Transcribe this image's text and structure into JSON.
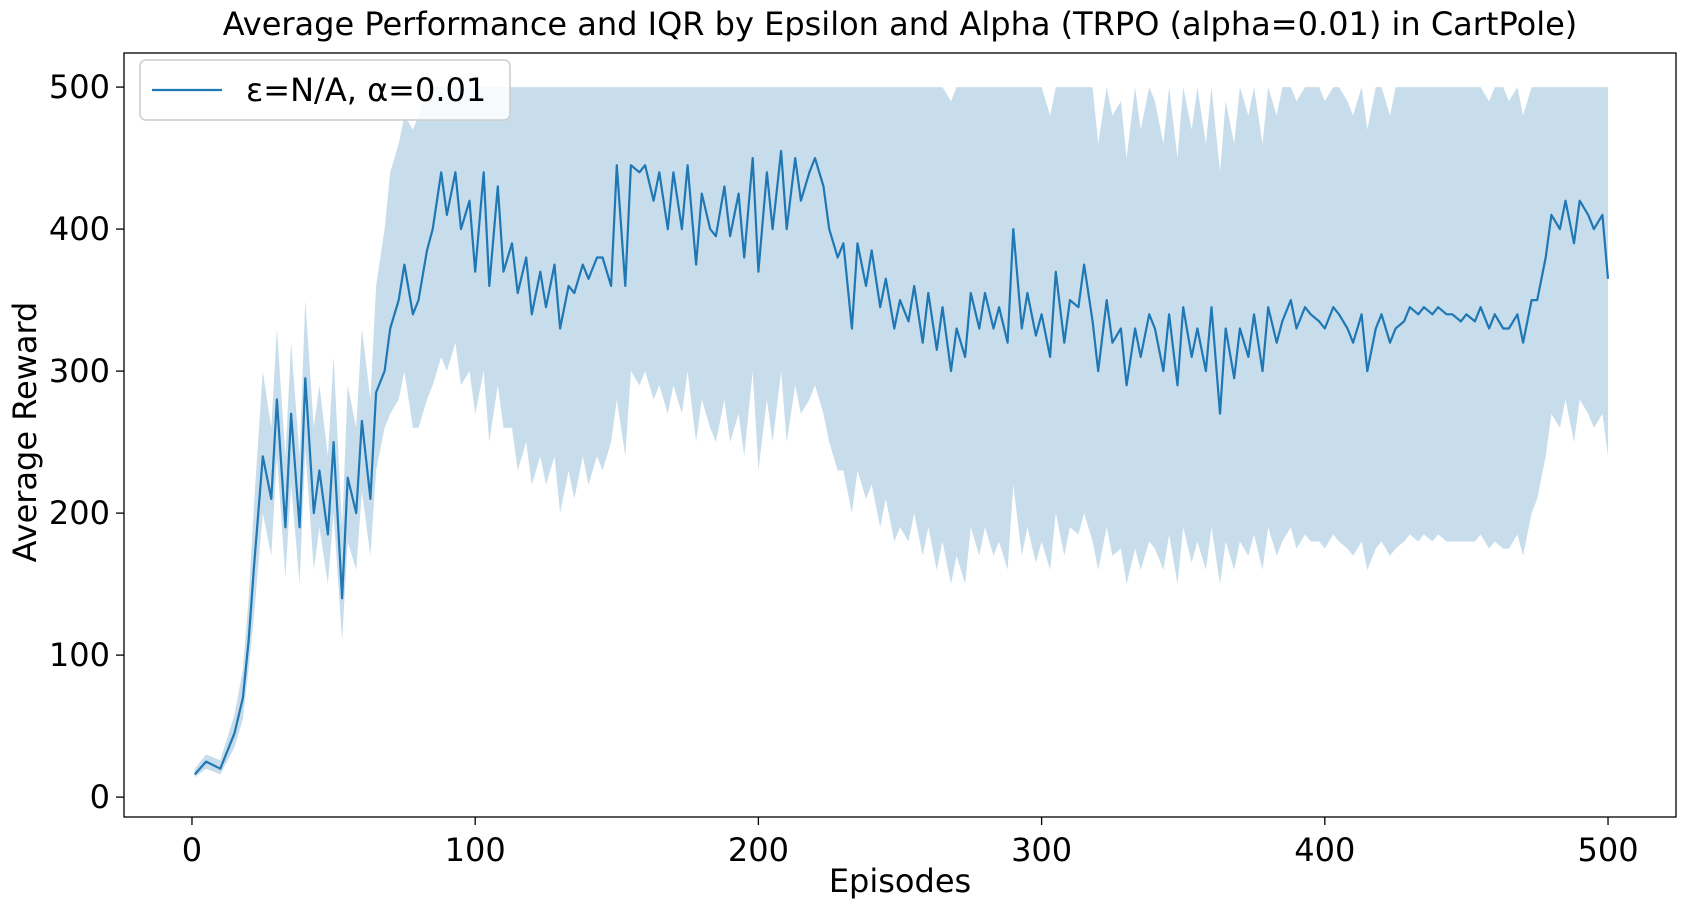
{
  "chart_data": {
    "type": "line",
    "title": "Average Performance and IQR by Epsilon and Alpha (TRPO (alpha=0.01) in CartPole)",
    "xlabel": "Episodes",
    "ylabel": "Average Reward",
    "xlim": [
      -24,
      524
    ],
    "ylim": [
      -14,
      524
    ],
    "xticks": [
      0,
      100,
      200,
      300,
      400,
      500
    ],
    "yticks": [
      0,
      100,
      200,
      300,
      400,
      500
    ],
    "grid": false,
    "legend_position": "top-left",
    "colors": {
      "line": "#1f77b4",
      "band": "#1f77b4",
      "band_opacity": 0.25
    },
    "series": [
      {
        "name": "ε=N/A, α=0.01",
        "x": [
          1,
          5,
          10,
          15,
          18,
          20,
          22,
          25,
          28,
          30,
          33,
          35,
          38,
          40,
          43,
          45,
          48,
          50,
          53,
          55,
          58,
          60,
          63,
          65,
          68,
          70,
          73,
          75,
          78,
          80,
          83,
          85,
          88,
          90,
          93,
          95,
          98,
          100,
          103,
          105,
          108,
          110,
          113,
          115,
          118,
          120,
          123,
          125,
          128,
          130,
          133,
          135,
          138,
          140,
          143,
          145,
          148,
          150,
          153,
          155,
          158,
          160,
          163,
          165,
          168,
          170,
          173,
          175,
          178,
          180,
          183,
          185,
          188,
          190,
          193,
          195,
          198,
          200,
          203,
          205,
          208,
          210,
          213,
          215,
          218,
          220,
          223,
          225,
          228,
          230,
          233,
          235,
          238,
          240,
          243,
          245,
          248,
          250,
          253,
          255,
          258,
          260,
          263,
          265,
          268,
          270,
          273,
          275,
          278,
          280,
          283,
          285,
          288,
          290,
          293,
          295,
          298,
          300,
          303,
          305,
          308,
          310,
          313,
          315,
          318,
          320,
          323,
          325,
          328,
          330,
          333,
          335,
          338,
          340,
          343,
          345,
          348,
          350,
          353,
          355,
          358,
          360,
          363,
          365,
          368,
          370,
          373,
          375,
          378,
          380,
          383,
          385,
          388,
          390,
          393,
          395,
          398,
          400,
          403,
          405,
          408,
          410,
          413,
          415,
          418,
          420,
          423,
          425,
          428,
          430,
          433,
          435,
          438,
          440,
          443,
          445,
          448,
          450,
          453,
          455,
          458,
          460,
          463,
          465,
          468,
          470,
          473,
          475,
          478,
          480,
          483,
          485,
          488,
          490,
          493,
          495,
          498,
          500
        ],
        "y": [
          16,
          25,
          20,
          45,
          70,
          110,
          165,
          240,
          210,
          280,
          190,
          270,
          190,
          295,
          200,
          230,
          185,
          250,
          140,
          225,
          200,
          265,
          210,
          285,
          300,
          330,
          350,
          375,
          340,
          350,
          385,
          400,
          440,
          410,
          440,
          400,
          420,
          370,
          440,
          360,
          430,
          370,
          390,
          355,
          380,
          340,
          370,
          345,
          375,
          330,
          360,
          355,
          375,
          365,
          380,
          380,
          360,
          445,
          360,
          445,
          440,
          445,
          420,
          440,
          400,
          440,
          400,
          445,
          375,
          425,
          400,
          395,
          430,
          395,
          425,
          380,
          450,
          370,
          440,
          400,
          455,
          400,
          450,
          420,
          440,
          450,
          430,
          400,
          380,
          390,
          330,
          390,
          360,
          385,
          345,
          365,
          330,
          350,
          335,
          360,
          320,
          355,
          315,
          345,
          300,
          330,
          310,
          355,
          330,
          355,
          330,
          345,
          320,
          400,
          330,
          355,
          325,
          340,
          310,
          370,
          320,
          350,
          345,
          375,
          335,
          300,
          350,
          320,
          330,
          290,
          330,
          310,
          340,
          330,
          300,
          340,
          290,
          345,
          310,
          330,
          300,
          345,
          270,
          330,
          295,
          330,
          310,
          340,
          300,
          345,
          320,
          335,
          350,
          330,
          345,
          340,
          335,
          330,
          345,
          340,
          330,
          320,
          340,
          300,
          330,
          340,
          320,
          330,
          335,
          345,
          340,
          345,
          340,
          345,
          340,
          340,
          335,
          340,
          335,
          345,
          330,
          340,
          330,
          330,
          340,
          320,
          350,
          350,
          380,
          410,
          400,
          420,
          390,
          420,
          410,
          400,
          410,
          365
        ],
        "q1": [
          14,
          20,
          16,
          35,
          55,
          90,
          130,
          200,
          170,
          240,
          155,
          220,
          150,
          245,
          160,
          190,
          150,
          200,
          110,
          180,
          160,
          215,
          170,
          230,
          260,
          270,
          280,
          300,
          260,
          260,
          280,
          290,
          310,
          300,
          320,
          290,
          300,
          270,
          300,
          250,
          290,
          260,
          260,
          230,
          250,
          220,
          240,
          220,
          240,
          200,
          230,
          210,
          240,
          220,
          240,
          230,
          250,
          280,
          240,
          300,
          290,
          300,
          280,
          290,
          270,
          290,
          270,
          300,
          250,
          280,
          260,
          250,
          280,
          250,
          270,
          240,
          300,
          230,
          280,
          250,
          300,
          250,
          290,
          270,
          280,
          290,
          270,
          250,
          230,
          230,
          200,
          230,
          210,
          220,
          190,
          210,
          180,
          190,
          180,
          200,
          170,
          190,
          160,
          180,
          150,
          170,
          150,
          190,
          170,
          190,
          170,
          180,
          160,
          220,
          170,
          190,
          165,
          180,
          160,
          200,
          170,
          190,
          185,
          200,
          180,
          160,
          190,
          170,
          175,
          150,
          175,
          160,
          180,
          175,
          160,
          185,
          150,
          190,
          165,
          180,
          160,
          190,
          150,
          180,
          160,
          180,
          170,
          185,
          160,
          190,
          170,
          180,
          190,
          175,
          185,
          180,
          180,
          175,
          185,
          180,
          175,
          170,
          180,
          160,
          175,
          180,
          170,
          175,
          180,
          185,
          180,
          185,
          180,
          185,
          180,
          180,
          180,
          180,
          180,
          185,
          175,
          180,
          175,
          175,
          185,
          170,
          200,
          210,
          240,
          270,
          260,
          280,
          250,
          280,
          270,
          260,
          270,
          240
        ],
        "q3": [
          20,
          30,
          26,
          58,
          90,
          140,
          210,
          300,
          260,
          330,
          240,
          320,
          240,
          350,
          260,
          290,
          240,
          310,
          190,
          290,
          260,
          330,
          280,
          360,
          400,
          440,
          460,
          480,
          470,
          480,
          500,
          500,
          500,
          500,
          500,
          500,
          500,
          500,
          500,
          500,
          500,
          500,
          500,
          500,
          500,
          500,
          500,
          500,
          500,
          500,
          500,
          500,
          500,
          500,
          500,
          500,
          500,
          500,
          500,
          500,
          500,
          500,
          500,
          500,
          500,
          500,
          500,
          500,
          500,
          500,
          500,
          500,
          500,
          500,
          500,
          500,
          500,
          500,
          500,
          500,
          500,
          500,
          500,
          500,
          500,
          500,
          500,
          500,
          500,
          500,
          500,
          500,
          500,
          500,
          500,
          500,
          500,
          500,
          500,
          500,
          500,
          500,
          500,
          500,
          490,
          500,
          500,
          500,
          500,
          500,
          500,
          500,
          500,
          500,
          500,
          500,
          500,
          500,
          480,
          500,
          500,
          500,
          500,
          500,
          500,
          460,
          500,
          480,
          490,
          450,
          500,
          470,
          500,
          490,
          460,
          500,
          450,
          500,
          470,
          500,
          460,
          500,
          440,
          490,
          460,
          500,
          480,
          500,
          460,
          500,
          480,
          500,
          500,
          490,
          500,
          500,
          500,
          490,
          500,
          500,
          490,
          480,
          500,
          470,
          500,
          500,
          480,
          500,
          500,
          500,
          500,
          500,
          500,
          500,
          500,
          500,
          500,
          500,
          500,
          500,
          490,
          500,
          500,
          490,
          500,
          480,
          500,
          500,
          500,
          500,
          500,
          500,
          500,
          500,
          500,
          500,
          500,
          500
        ]
      }
    ]
  }
}
